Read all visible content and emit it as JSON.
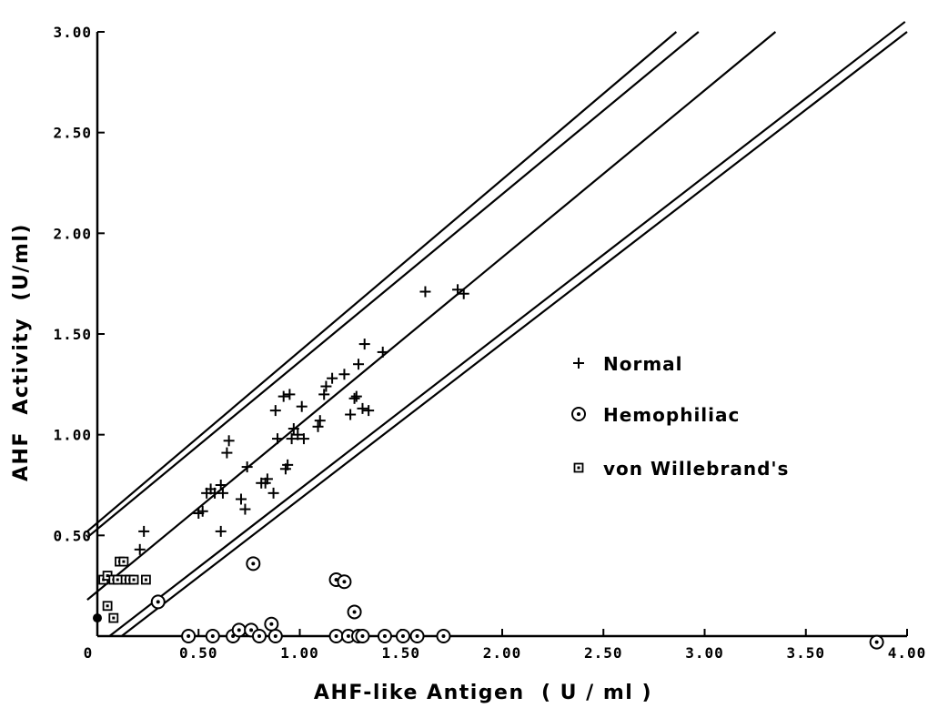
{
  "chart_data": {
    "type": "scatter",
    "title": "",
    "xlabel": "AHF-like Antigen  ( U / ml )",
    "ylabel": "AHF  Activity  (U/ml)",
    "xlim": [
      0,
      4.0
    ],
    "ylim": [
      0,
      3.0
    ],
    "x_ticks": [
      {
        "value": 0,
        "label": "0"
      },
      {
        "value": 0.5,
        "label": "0.50"
      },
      {
        "value": 1.0,
        "label": "1.00"
      },
      {
        "value": 1.5,
        "label": "1.50"
      },
      {
        "value": 2.0,
        "label": "2.00"
      },
      {
        "value": 2.5,
        "label": "2.50"
      },
      {
        "value": 3.0,
        "label": "3.00"
      },
      {
        "value": 3.5,
        "label": "3.50"
      },
      {
        "value": 4.0,
        "label": "4.00"
      }
    ],
    "y_ticks": [
      {
        "value": 0.5,
        "label": "0.50"
      },
      {
        "value": 1.0,
        "label": "1.00"
      },
      {
        "value": 1.5,
        "label": "1.50"
      },
      {
        "value": 2.0,
        "label": "2.00"
      },
      {
        "value": 2.5,
        "label": "2.50"
      },
      {
        "value": 3.0,
        "label": "3.00"
      }
    ],
    "grid": false,
    "legend_position": "right",
    "reference_lines": [
      {
        "x1": -0.05,
        "y1": 0.52,
        "x2": 2.86,
        "y2": 3.0
      },
      {
        "x1": -0.05,
        "y1": 0.49,
        "x2": 2.97,
        "y2": 3.0
      },
      {
        "x1": -0.05,
        "y1": 0.18,
        "x2": 3.35,
        "y2": 3.0
      },
      {
        "x1": 0.06,
        "y1": 0.0,
        "x2": 3.99,
        "y2": 3.05
      },
      {
        "x1": 0.12,
        "y1": 0.0,
        "x2": 4.0,
        "y2": 3.0
      }
    ],
    "series": [
      {
        "name": "Normal",
        "marker": "plus",
        "points": [
          [
            0.23,
            0.52
          ],
          [
            0.21,
            0.43
          ],
          [
            0.5,
            0.61
          ],
          [
            0.52,
            0.62
          ],
          [
            0.54,
            0.71
          ],
          [
            0.56,
            0.73
          ],
          [
            0.58,
            0.71
          ],
          [
            0.61,
            0.75
          ],
          [
            0.62,
            0.71
          ],
          [
            0.61,
            0.52
          ],
          [
            0.64,
            0.91
          ],
          [
            0.65,
            0.97
          ],
          [
            0.71,
            0.68
          ],
          [
            0.73,
            0.63
          ],
          [
            0.74,
            0.84
          ],
          [
            0.81,
            0.76
          ],
          [
            0.83,
            0.76
          ],
          [
            0.84,
            0.78
          ],
          [
            0.87,
            0.71
          ],
          [
            0.88,
            1.12
          ],
          [
            0.89,
            0.98
          ],
          [
            0.92,
            1.19
          ],
          [
            0.93,
            0.83
          ],
          [
            0.94,
            0.85
          ],
          [
            0.95,
            1.2
          ],
          [
            0.96,
            0.98
          ],
          [
            0.97,
            1.03
          ],
          [
            0.99,
            1.0
          ],
          [
            1.01,
            1.14
          ],
          [
            1.02,
            0.98
          ],
          [
            1.09,
            1.04
          ],
          [
            1.1,
            1.07
          ],
          [
            1.12,
            1.2
          ],
          [
            1.13,
            1.24
          ],
          [
            1.16,
            1.28
          ],
          [
            1.22,
            1.3
          ],
          [
            1.25,
            1.1
          ],
          [
            1.27,
            1.18
          ],
          [
            1.28,
            1.19
          ],
          [
            1.29,
            1.35
          ],
          [
            1.31,
            1.13
          ],
          [
            1.32,
            1.45
          ],
          [
            1.34,
            1.12
          ],
          [
            1.41,
            1.41
          ],
          [
            1.62,
            1.71
          ],
          [
            1.78,
            1.72
          ],
          [
            1.81,
            1.7
          ]
        ]
      },
      {
        "name": "Hemophiliac",
        "marker": "circle",
        "points": [
          [
            0.3,
            0.17
          ],
          [
            0.45,
            0.0
          ],
          [
            0.57,
            0.0
          ],
          [
            0.67,
            0.0
          ],
          [
            0.7,
            0.03
          ],
          [
            0.76,
            0.03
          ],
          [
            0.8,
            0.0
          ],
          [
            0.86,
            0.06
          ],
          [
            0.88,
            0.0
          ],
          [
            0.77,
            0.36
          ],
          [
            1.18,
            0.28
          ],
          [
            1.22,
            0.27
          ],
          [
            1.18,
            0.0
          ],
          [
            1.24,
            0.0
          ],
          [
            1.29,
            0.0
          ],
          [
            1.31,
            0.0
          ],
          [
            1.27,
            0.12
          ],
          [
            1.42,
            0.0
          ],
          [
            1.51,
            0.0
          ],
          [
            1.58,
            0.0
          ],
          [
            1.71,
            0.0
          ],
          [
            3.85,
            -0.03
          ]
        ]
      },
      {
        "name": "von Willebrand's",
        "marker": "square",
        "points": [
          [
            0.03,
            0.28
          ],
          [
            0.05,
            0.3
          ],
          [
            0.08,
            0.28
          ],
          [
            0.1,
            0.28
          ],
          [
            0.11,
            0.37
          ],
          [
            0.13,
            0.37
          ],
          [
            0.14,
            0.28
          ],
          [
            0.16,
            0.28
          ],
          [
            0.18,
            0.28
          ],
          [
            0.24,
            0.28
          ],
          [
            0.05,
            0.15
          ],
          [
            0.08,
            0.09
          ]
        ]
      },
      {
        "name": "",
        "marker": "filled-circle",
        "points": [
          [
            0.0,
            0.09
          ]
        ]
      }
    ]
  }
}
